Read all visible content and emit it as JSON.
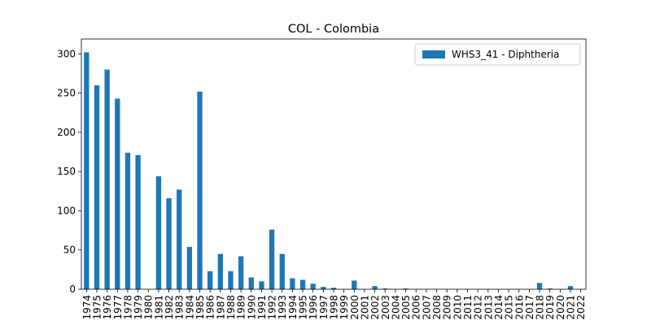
{
  "chart_data": {
    "type": "bar",
    "title": "COL - Colombia",
    "xlabel": "",
    "ylabel": "",
    "ylim": [
      0,
      319
    ],
    "yticks": [
      0,
      50,
      100,
      150,
      200,
      250,
      300
    ],
    "grid": false,
    "legend_position": "top-right",
    "bar_color": "#1f77b4",
    "categories": [
      "1974",
      "1975",
      "1976",
      "1977",
      "1978",
      "1979",
      "1980",
      "1981",
      "1982",
      "1983",
      "1984",
      "1985",
      "1986",
      "1987",
      "1988",
      "1989",
      "1990",
      "1991",
      "1992",
      "1993",
      "1994",
      "1995",
      "1996",
      "1997",
      "1998",
      "1999",
      "2000",
      "2001",
      "2002",
      "2003",
      "2004",
      "2005",
      "2006",
      "2007",
      "2008",
      "2009",
      "2010",
      "2011",
      "2012",
      "2013",
      "2014",
      "2015",
      "2016",
      "2017",
      "2018",
      "2019",
      "2020",
      "2021",
      "2022"
    ],
    "series": [
      {
        "name": "WHS3_41 - Diphtheria",
        "values": [
          302,
          260,
          280,
          243,
          174,
          171,
          0,
          144,
          116,
          127,
          54,
          252,
          23,
          45,
          23,
          42,
          15,
          10,
          76,
          45,
          14,
          12,
          7,
          3,
          2,
          0,
          11,
          0,
          4,
          1,
          0,
          1,
          0,
          0,
          0,
          0,
          0,
          0,
          0,
          0,
          0,
          0,
          0,
          0,
          8,
          1,
          0,
          4,
          0
        ]
      }
    ]
  }
}
